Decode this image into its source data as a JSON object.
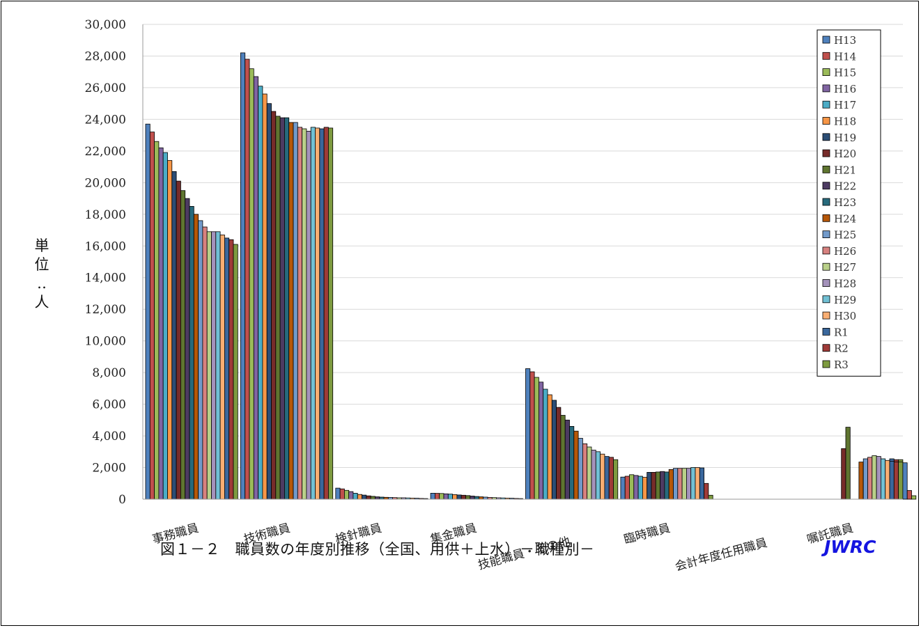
{
  "chart_data": {
    "type": "bar",
    "title": "",
    "caption": "図１－２　職員数の年度別推移（全国、用供＋上水）－職種別－",
    "ylabel": "単位：人",
    "ylim": [
      0,
      30000
    ],
    "yticks": [
      0,
      2000,
      4000,
      6000,
      8000,
      10000,
      12000,
      14000,
      16000,
      18000,
      20000,
      22000,
      24000,
      26000,
      28000,
      30000
    ],
    "ytick_labels": [
      "0",
      "2,000",
      "4,000",
      "6,000",
      "8,000",
      "10,000",
      "12,000",
      "14,000",
      "16,000",
      "18,000",
      "20,000",
      "22,000",
      "24,000",
      "26,000",
      "28,000",
      "30,000"
    ],
    "grid": true,
    "legend_position": "top-right",
    "categories": [
      "事務職員",
      "技術職員",
      "検針職員",
      "集金職員",
      "技能職員・その他",
      "臨時職員",
      "会計年度任用職員",
      "嘱託職員"
    ],
    "series": [
      {
        "name": "H13",
        "color": "#4f81bd",
        "values": [
          23700,
          28200,
          700,
          380,
          8250,
          1400,
          null,
          null
        ]
      },
      {
        "name": "H14",
        "color": "#c0504d",
        "values": [
          23200,
          27800,
          650,
          370,
          8050,
          1450,
          null,
          null
        ]
      },
      {
        "name": "H15",
        "color": "#9bbb59",
        "values": [
          22600,
          27200,
          560,
          360,
          7700,
          1550,
          null,
          null
        ]
      },
      {
        "name": "H16",
        "color": "#8064a2",
        "values": [
          22200,
          26700,
          480,
          340,
          7400,
          1500,
          null,
          null
        ]
      },
      {
        "name": "H17",
        "color": "#4bacc6",
        "values": [
          21900,
          26100,
          380,
          320,
          6950,
          1450,
          null,
          null
        ]
      },
      {
        "name": "H18",
        "color": "#f79646",
        "values": [
          21400,
          25600,
          300,
          290,
          6600,
          1380,
          null,
          null
        ]
      },
      {
        "name": "H19",
        "color": "#2c4d75",
        "values": [
          20700,
          25000,
          260,
          270,
          6250,
          1700,
          null,
          null
        ]
      },
      {
        "name": "H20",
        "color": "#772c2a",
        "values": [
          20100,
          24500,
          210,
          250,
          5800,
          1700,
          null,
          3200
        ]
      },
      {
        "name": "H21",
        "color": "#5f7530",
        "values": [
          19500,
          24200,
          180,
          230,
          5300,
          1720,
          null,
          4550
        ]
      },
      {
        "name": "H22",
        "color": "#4d3b62",
        "values": [
          19000,
          24100,
          150,
          200,
          5000,
          1750,
          null,
          null
        ]
      },
      {
        "name": "H23",
        "color": "#276a7c",
        "values": [
          18500,
          24100,
          130,
          170,
          4600,
          1720,
          null,
          null
        ]
      },
      {
        "name": "H24",
        "color": "#b65708",
        "values": [
          18000,
          23800,
          120,
          150,
          4300,
          1880,
          null,
          2350
        ]
      },
      {
        "name": "H25",
        "color": "#729aca",
        "values": [
          17600,
          23800,
          110,
          130,
          3850,
          1950,
          null,
          2300
        ]
      },
      {
        "name": "H26",
        "color": "#d7817f",
        "values": [
          17200,
          23500,
          100,
          110,
          3500,
          1950,
          null,
          2350
        ]
      },
      {
        "name": "H27",
        "color": "#b9d089",
        "values": [
          16900,
          23400,
          90,
          100,
          3300,
          1950,
          null,
          2500
        ]
      },
      {
        "name": "H28",
        "color": "#a492bb",
        "values": [
          16900,
          23250,
          90,
          90,
          3100,
          1950,
          null,
          2450
        ]
      },
      {
        "name": "H29",
        "color": "#71c0d4",
        "values": [
          16900,
          23500,
          80,
          80,
          3000,
          2000,
          null,
          2400
        ]
      },
      {
        "name": "H30",
        "color": "#f9ae72",
        "values": [
          16700,
          23450,
          70,
          70,
          2850,
          2000,
          null,
          2400
        ]
      },
      {
        "name": "R1",
        "color": "#3a679c",
        "values": [
          16500,
          23400,
          60,
          60,
          2700,
          1980,
          null,
          2550
        ]
      },
      {
        "name": "R2",
        "color": "#9f3b38",
        "values": [
          16400,
          23500,
          50,
          50,
          2650,
          1000,
          0,
          2500
        ]
      },
      {
        "name": "R3",
        "color": "#7e9b40",
        "values": [
          16100,
          23450,
          40,
          40,
          2500,
          250,
          0,
          2500
        ]
      }
    ],
    "shojitaku_tail": {
      "categories_index": 7,
      "values": [
        2550,
        2650,
        2750,
        2700,
        2550,
        2450,
        2400,
        2350,
        2350,
        2300,
        550,
        220
      ]
    }
  },
  "branding": {
    "logo_text": "JWRC",
    "logo_color": "#1515e0"
  }
}
